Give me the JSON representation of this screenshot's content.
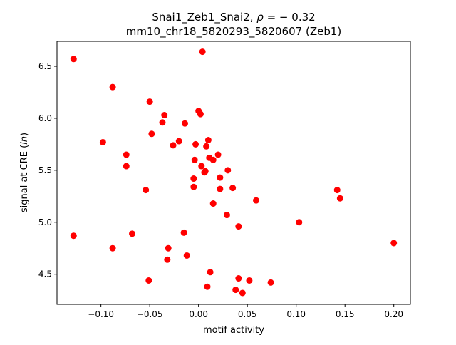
{
  "chart_data": {
    "type": "scatter",
    "title_line1_prefix": "Snai1_Zeb1_Snai2, ",
    "title_line1_rho": "ρ",
    "title_line1_suffix": " = − 0.32",
    "title_line2": "mm10_chr18_5820293_5820607 (Zeb1)",
    "xlabel": "motif activity",
    "ylabel": "signal at CRE (ln)",
    "ylabel_prefix": "signal at CRE (",
    "ylabel_italic": "ln",
    "ylabel_suffix": ")",
    "xlim": [
      -0.145,
      0.217
    ],
    "ylim": [
      4.21,
      6.74
    ],
    "xticks": [
      -0.1,
      -0.05,
      0.0,
      0.05,
      0.1,
      0.15,
      0.2
    ],
    "xtick_labels": [
      "−0.10",
      "−0.05",
      "0.00",
      "0.05",
      "0.10",
      "0.15",
      "0.20"
    ],
    "yticks": [
      4.5,
      5.0,
      5.5,
      6.0,
      6.5
    ],
    "ytick_labels": [
      "4.5",
      "5.0",
      "5.5",
      "6.0",
      "6.5"
    ],
    "marker_color": "#ff0000",
    "grid": false,
    "points": [
      {
        "x": -0.128,
        "y": 6.57
      },
      {
        "x": -0.088,
        "y": 6.3
      },
      {
        "x": 0.004,
        "y": 6.64
      },
      {
        "x": -0.05,
        "y": 6.16
      },
      {
        "x": -0.035,
        "y": 6.03
      },
      {
        "x": 0.0,
        "y": 6.07
      },
      {
        "x": 0.002,
        "y": 6.04
      },
      {
        "x": -0.037,
        "y": 5.96
      },
      {
        "x": -0.014,
        "y": 5.95
      },
      {
        "x": -0.048,
        "y": 5.85
      },
      {
        "x": -0.098,
        "y": 5.77
      },
      {
        "x": -0.02,
        "y": 5.78
      },
      {
        "x": -0.026,
        "y": 5.74
      },
      {
        "x": -0.003,
        "y": 5.75
      },
      {
        "x": 0.01,
        "y": 5.79
      },
      {
        "x": 0.008,
        "y": 5.73
      },
      {
        "x": -0.074,
        "y": 5.65
      },
      {
        "x": 0.02,
        "y": 5.65
      },
      {
        "x": 0.011,
        "y": 5.62
      },
      {
        "x": 0.015,
        "y": 5.6
      },
      {
        "x": -0.004,
        "y": 5.6
      },
      {
        "x": -0.074,
        "y": 5.54
      },
      {
        "x": 0.003,
        "y": 5.54
      },
      {
        "x": 0.03,
        "y": 5.5
      },
      {
        "x": 0.006,
        "y": 5.48
      },
      {
        "x": 0.007,
        "y": 5.49
      },
      {
        "x": -0.005,
        "y": 5.42
      },
      {
        "x": 0.022,
        "y": 5.43
      },
      {
        "x": -0.054,
        "y": 5.31
      },
      {
        "x": -0.005,
        "y": 5.34
      },
      {
        "x": 0.022,
        "y": 5.32
      },
      {
        "x": 0.035,
        "y": 5.33
      },
      {
        "x": 0.142,
        "y": 5.31
      },
      {
        "x": 0.145,
        "y": 5.23
      },
      {
        "x": 0.059,
        "y": 5.21
      },
      {
        "x": 0.015,
        "y": 5.18
      },
      {
        "x": 0.029,
        "y": 5.07
      },
      {
        "x": 0.103,
        "y": 5.0
      },
      {
        "x": 0.041,
        "y": 4.96
      },
      {
        "x": -0.128,
        "y": 4.87
      },
      {
        "x": -0.068,
        "y": 4.89
      },
      {
        "x": -0.015,
        "y": 4.9
      },
      {
        "x": 0.2,
        "y": 4.8
      },
      {
        "x": -0.088,
        "y": 4.75
      },
      {
        "x": -0.031,
        "y": 4.75
      },
      {
        "x": -0.012,
        "y": 4.68
      },
      {
        "x": -0.032,
        "y": 4.64
      },
      {
        "x": 0.012,
        "y": 4.52
      },
      {
        "x": -0.051,
        "y": 4.44
      },
      {
        "x": 0.041,
        "y": 4.46
      },
      {
        "x": 0.052,
        "y": 4.44
      },
      {
        "x": 0.074,
        "y": 4.42
      },
      {
        "x": 0.009,
        "y": 4.38
      },
      {
        "x": 0.038,
        "y": 4.35
      },
      {
        "x": 0.045,
        "y": 4.32
      }
    ]
  }
}
